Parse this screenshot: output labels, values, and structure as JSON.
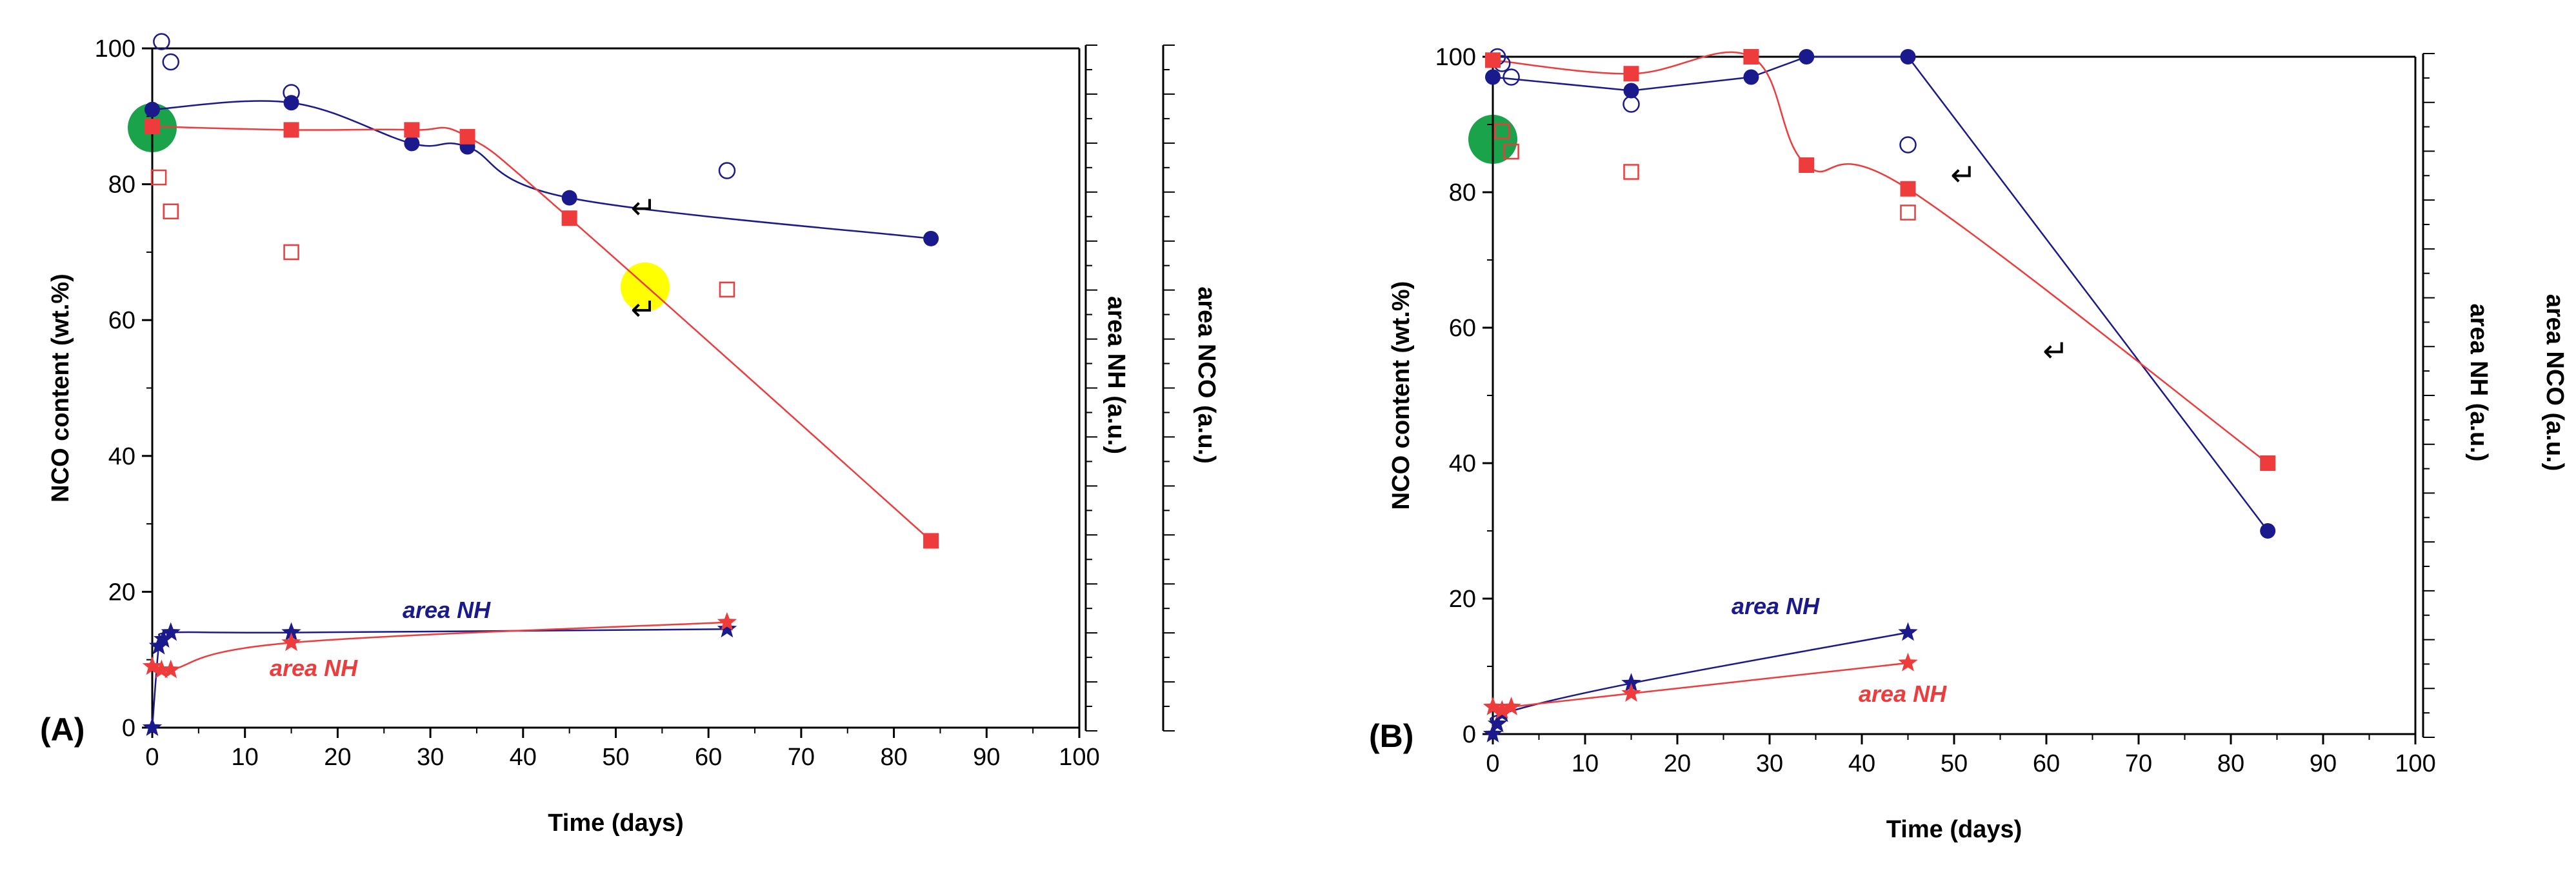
{
  "colors": {
    "blue": "#1a1a8c",
    "red": "#ee3b3b",
    "green": "#1aa34a",
    "yellow": "#ffff00"
  },
  "chart_data": [
    {
      "type": "scatter",
      "panel_label": "(A)",
      "xlabel": "Time (days)",
      "ylabel": "NCO content (wt.%)",
      "y2label": "area NH (a.u.)",
      "y3label": "area NCO (a.u.)",
      "xlim": [
        0,
        100
      ],
      "ylim": [
        0,
        100
      ],
      "xticks": [
        "0",
        "10",
        "20",
        "30",
        "40",
        "50",
        "60",
        "70",
        "80",
        "90",
        "100"
      ],
      "yticks": [
        "0",
        "20",
        "40",
        "60",
        "80",
        "100"
      ],
      "series": [
        {
          "name": "NCO content blue (filled circle)",
          "marker": "circle-filled",
          "color": "blue",
          "x": [
            0,
            15,
            28,
            34,
            45,
            84
          ],
          "y": [
            91,
            92,
            86,
            85.5,
            78,
            72
          ]
        },
        {
          "name": "area NCO blue (open circle)",
          "marker": "circle-open",
          "color": "blue",
          "x": [
            1,
            2,
            15,
            62
          ],
          "y": [
            101,
            98,
            93.5,
            82
          ]
        },
        {
          "name": "NCO content red (filled square)",
          "marker": "square-filled",
          "color": "red",
          "x": [
            0,
            15,
            28,
            34,
            45,
            84
          ],
          "y": [
            88.5,
            88,
            88,
            87,
            75,
            27.5
          ]
        },
        {
          "name": "area NCO red (open square)",
          "marker": "square-open",
          "color": "red",
          "x": [
            0.7,
            2,
            15,
            62
          ],
          "y": [
            81,
            76,
            70,
            64.5
          ]
        },
        {
          "name": "area NH",
          "marker": "star",
          "color": "blue",
          "label": "area NH",
          "x": [
            0,
            0.7,
            1.2,
            2,
            15,
            62
          ],
          "y": [
            0,
            12,
            13,
            14,
            14,
            14.5
          ]
        },
        {
          "name": "area NH",
          "marker": "star",
          "color": "red",
          "label": "area NH",
          "x": [
            0,
            1,
            2,
            15,
            62
          ],
          "y": [
            9,
            8.5,
            8.5,
            12.5,
            15.5
          ]
        }
      ],
      "annotations": [
        {
          "type": "arrow",
          "glyph": "↵",
          "x": 53,
          "y": 75
        },
        {
          "type": "arrow",
          "glyph": "↵",
          "x": 53,
          "y": 60
        }
      ]
    },
    {
      "type": "scatter",
      "panel_label": "(B)",
      "xlabel": "Time (days)",
      "ylabel": "NCO content (wt.%)",
      "y2label": "area NH (a.u.)",
      "y3label": "area NCO (a.u.)",
      "xlim": [
        0,
        100
      ],
      "ylim": [
        0,
        100
      ],
      "xticks": [
        "0",
        "10",
        "20",
        "30",
        "40",
        "50",
        "60",
        "70",
        "80",
        "90",
        "100"
      ],
      "yticks": [
        "0",
        "20",
        "40",
        "60",
        "80",
        "100"
      ],
      "series": [
        {
          "name": "NCO content blue (filled circle)",
          "marker": "circle-filled",
          "color": "blue",
          "x": [
            0,
            15,
            28,
            34,
            45,
            84
          ],
          "y": [
            97,
            95,
            97,
            100,
            100,
            30
          ]
        },
        {
          "name": "area NCO blue (open circle)",
          "marker": "circle-open",
          "color": "blue",
          "x": [
            0.5,
            1,
            2,
            15,
            45
          ],
          "y": [
            100,
            99,
            97,
            93,
            87
          ]
        },
        {
          "name": "NCO content red (filled square)",
          "marker": "square-filled",
          "color": "red",
          "x": [
            0,
            15,
            28,
            34,
            45,
            84
          ],
          "y": [
            99.5,
            97.5,
            100,
            84,
            80.5,
            40
          ]
        },
        {
          "name": "area NCO red (open square)",
          "marker": "square-open",
          "color": "red",
          "x": [
            1,
            2,
            15,
            45
          ],
          "y": [
            89,
            86,
            83,
            77
          ]
        },
        {
          "name": "area NH",
          "marker": "star",
          "color": "blue",
          "label": "area NH",
          "x": [
            0,
            0.5,
            1,
            15,
            45
          ],
          "y": [
            0,
            1.5,
            3,
            7.5,
            15
          ]
        },
        {
          "name": "area NH",
          "marker": "star",
          "color": "red",
          "label": "area NH",
          "x": [
            0,
            1,
            2,
            15,
            45
          ],
          "y": [
            4,
            3.5,
            4,
            6,
            10.5
          ]
        }
      ],
      "annotations": [
        {
          "type": "arrow",
          "glyph": "↵",
          "x": 51,
          "y": 81
        },
        {
          "type": "arrow",
          "glyph": "↵",
          "x": 61,
          "y": 55
        }
      ]
    }
  ]
}
